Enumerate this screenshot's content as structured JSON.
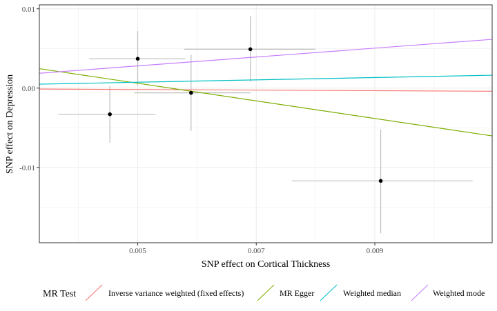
{
  "chart_data": {
    "type": "scatter",
    "xlabel": "SNP effect on Cortical Thickness",
    "ylabel": "SNP effect on Depression",
    "xlim": [
      0.00334,
      0.01098
    ],
    "ylim": [
      -0.0195,
      0.0105
    ],
    "x_ticks": [
      0.005,
      0.007,
      0.009
    ],
    "x_tick_labels": [
      "0.005",
      "0.007",
      "0.009"
    ],
    "y_ticks": [
      0.01,
      0.0,
      -0.01
    ],
    "y_tick_labels": [
      "0.01",
      "0.00",
      "-0.01"
    ],
    "grid": true,
    "legend_position": "bottom",
    "legend_title": "MR Test",
    "points": [
      {
        "x": 0.00453,
        "y": -0.0033,
        "x_lo": 0.00366,
        "x_hi": 0.0053,
        "y_lo": -0.0069,
        "y_hi": 0.0003
      },
      {
        "x": 0.005,
        "y": 0.0037,
        "x_lo": 0.00418,
        "x_hi": 0.0058,
        "y_lo": 0.0003,
        "y_hi": 0.0072
      },
      {
        "x": 0.0059,
        "y": -0.0006,
        "x_lo": 0.00494,
        "x_hi": 0.0069,
        "y_lo": -0.0054,
        "y_hi": 0.0042
      },
      {
        "x": 0.0069,
        "y": 0.0049,
        "x_lo": 0.00578,
        "x_hi": 0.008,
        "y_lo": 0.0008,
        "y_hi": 0.0091
      },
      {
        "x": 0.0091,
        "y": -0.0117,
        "x_lo": 0.0076,
        "x_hi": 0.01065,
        "y_lo": -0.0183,
        "y_hi": -0.0052
      }
    ],
    "series": [
      {
        "name": "Inverse variance weighted (fixed effects)",
        "color": "#F8766D",
        "slope": -0.036,
        "intercept": 0.0
      },
      {
        "name": "MR Egger",
        "color": "#7CAE00",
        "slope": -1.11,
        "intercept": 0.00616
      },
      {
        "name": "Weighted median",
        "color": "#00BFC4",
        "slope": 0.148,
        "intercept": 0.0
      },
      {
        "name": "Weighted mode",
        "color": "#C77CFF",
        "slope": 0.56,
        "intercept": 0.0
      }
    ]
  }
}
